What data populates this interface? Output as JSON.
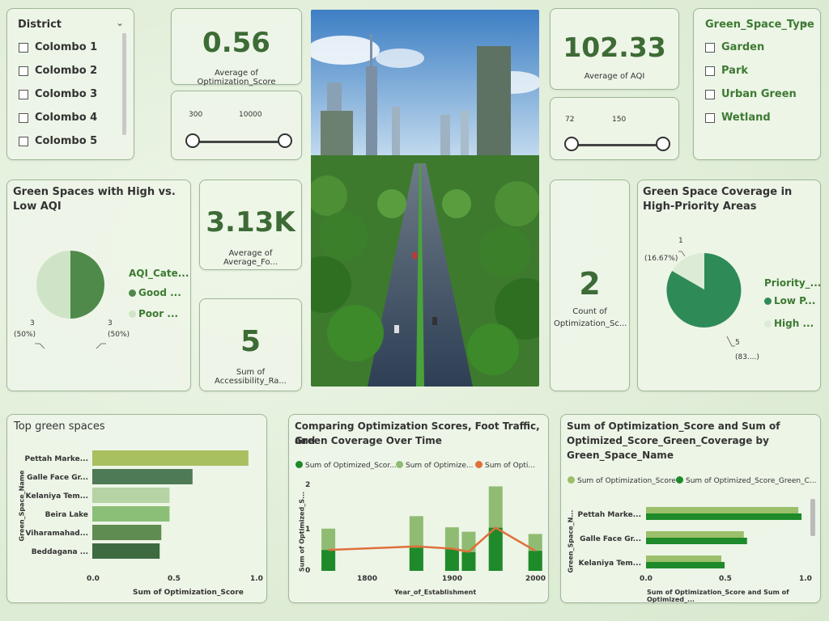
{
  "district_slicer": {
    "title": "District",
    "items": [
      "Colombo 1",
      "Colombo 2",
      "Colombo 3",
      "Colombo 4",
      "Colombo 5"
    ]
  },
  "kpi_opt_score": {
    "value": "0.56",
    "label": "Average of Optimization_Score"
  },
  "foot_slider": {
    "min_label": "300",
    "max_label": "10000"
  },
  "kpi_aqi": {
    "value": "102.33",
    "label": "Average of AQI"
  },
  "aqi_slider": {
    "min_label": "72",
    "max_label": "150"
  },
  "green_type_slicer": {
    "title": "Green_Space_Type",
    "items": [
      "Garden",
      "Park",
      "Urban Green",
      "Wetland"
    ]
  },
  "aqi_pie": {
    "title": "Green Spaces with High vs. Low AQI",
    "legend_title": "AQI_Cate...",
    "legend": [
      "Good ...",
      "Poor ..."
    ],
    "label_left": "3",
    "label_left_pct": "(50%)",
    "label_right": "3",
    "label_right_pct": "(50%)",
    "colors": [
      "#4f8a4a",
      "#cfe4c6"
    ]
  },
  "kpi_foot": {
    "value": "3.13K",
    "label": "Average of Average_Fo..."
  },
  "kpi_access": {
    "value": "5",
    "label": "Sum of Accessibility_Ra..."
  },
  "kpi_count": {
    "value": "2",
    "label_line1": "Count of",
    "label_line2": "Optimization_Sc..."
  },
  "priority_pie": {
    "title_line1": "Green Space Coverage in",
    "title_line2": "High-Priority Areas",
    "legend_title": "Priority_...",
    "legend": [
      "Low P...",
      "High ..."
    ],
    "label_top": "1",
    "label_top_pct": "(16.67%)",
    "label_bottom": "5",
    "label_bottom_pct": "(83....)",
    "colors": [
      "#2e8b57",
      "#dcebd6"
    ]
  },
  "top_spaces": {
    "title": "Top green spaces",
    "y_axis_title": "Green_Space_Name",
    "x_axis_title": "Sum of Optimization_Score",
    "ticks": [
      "0.0",
      "0.5",
      "1.0"
    ]
  },
  "compare_chart": {
    "title_line1": "Comparing Optimization Scores, Foot Traffic, and",
    "title_line2": "Green Coverage Over Time",
    "legend": [
      "Sum of Optimized_Scor...",
      "Sum of Optimize...",
      "Sum of Opti..."
    ],
    "y_axis_title": "Sum of Optimized_S...",
    "x_axis_title": "Year_of_Establishment",
    "y_ticks": [
      "0",
      "1",
      "2"
    ],
    "x_ticks": [
      "1800",
      "1900",
      "2000"
    ]
  },
  "name_chart": {
    "title_line1": "Sum of Optimization_Score and Sum of",
    "title_line2": "Optimized_Score_Green_Coverage by",
    "title_line3": "Green_Space_Name",
    "legend": [
      "Sum of Optimization_Score",
      "Sum of Optimized_Score_Green_C..."
    ],
    "y_axis_title": "Green_Space_N...",
    "x_axis_title": "Sum of Optimization_Score and Sum of Optimized_...",
    "ticks": [
      "0.0",
      "0.5",
      "1.0"
    ]
  },
  "chart_data": [
    {
      "type": "pie",
      "title": "Green Spaces with High vs. Low AQI",
      "legend_title": "AQI_Cate...",
      "slices": [
        {
          "label": "Good ...",
          "value": 3,
          "percent": 50
        },
        {
          "label": "Poor ...",
          "value": 3,
          "percent": 50
        }
      ]
    },
    {
      "type": "pie",
      "title": "Green Space Coverage in High-Priority Areas",
      "legend_title": "Priority_...",
      "slices": [
        {
          "label": "Low P...",
          "value": 5,
          "percent": 83.33
        },
        {
          "label": "High ...",
          "value": 1,
          "percent": 16.67
        }
      ]
    },
    {
      "type": "bar",
      "title": "Top green spaces",
      "orientation": "horizontal",
      "categories": [
        "Pettah Marke...",
        "Galle Face Gr...",
        "Kelaniya Tem...",
        "Beira Lake",
        "Viharamahad...",
        "Beddagana ..."
      ],
      "values": [
        0.95,
        0.61,
        0.47,
        0.47,
        0.42,
        0.41
      ],
      "colors": [
        "#a8c060",
        "#4e7a55",
        "#b5d3a4",
        "#8bbf77",
        "#5f8c50",
        "#3e6a3f"
      ],
      "xlabel": "Sum of Optimization_Score",
      "ylabel": "Green_Space_Name",
      "xlim": [
        0,
        1.0
      ]
    },
    {
      "type": "bar",
      "title": "Comparing Optimization Scores, Foot Traffic, and Green Coverage Over Time",
      "x": [
        1739,
        1850,
        1895,
        1916,
        1950,
        2000
      ],
      "xlim": [
        1720,
        2010
      ],
      "ylim": [
        0,
        2
      ],
      "series": [
        {
          "name": "Sum of Optimized_Scor...",
          "kind": "bar",
          "color": "#1e8a2a",
          "values": [
            0.47,
            0.52,
            0.5,
            0.42,
            0.97,
            0.45
          ]
        },
        {
          "name": "Sum of Optimize...",
          "kind": "bar",
          "color": "#8fbc72",
          "values": [
            0.95,
            1.23,
            0.98,
            0.88,
            1.9,
            0.83
          ]
        },
        {
          "name": "Sum of Opti...",
          "kind": "line",
          "color": "#e0703a",
          "values": [
            0.47,
            0.55,
            0.5,
            0.43,
            0.97,
            0.45
          ]
        }
      ],
      "xlabel": "Year_of_Establishment",
      "ylabel": "Sum of Optimized_S..."
    },
    {
      "type": "bar",
      "title": "Sum of Optimization_Score and Sum of Optimized_Score_Green_Coverage by Green_Space_Name",
      "orientation": "horizontal",
      "categories": [
        "Pettah Marke...",
        "Galle Face Gr...",
        "Kelaniya Tem..."
      ],
      "series": [
        {
          "name": "Sum of Optimization_Score",
          "color": "#9bbf6a",
          "values": [
            0.95,
            0.61,
            0.47
          ]
        },
        {
          "name": "Sum of Optimized_Score_Green_C...",
          "color": "#1e8a2a",
          "values": [
            0.97,
            0.63,
            0.49
          ]
        }
      ],
      "xlim": [
        0,
        1.0
      ],
      "xlabel": "Sum of Optimization_Score and Sum of Optimized_...",
      "ylabel": "Green_Space_N..."
    }
  ]
}
